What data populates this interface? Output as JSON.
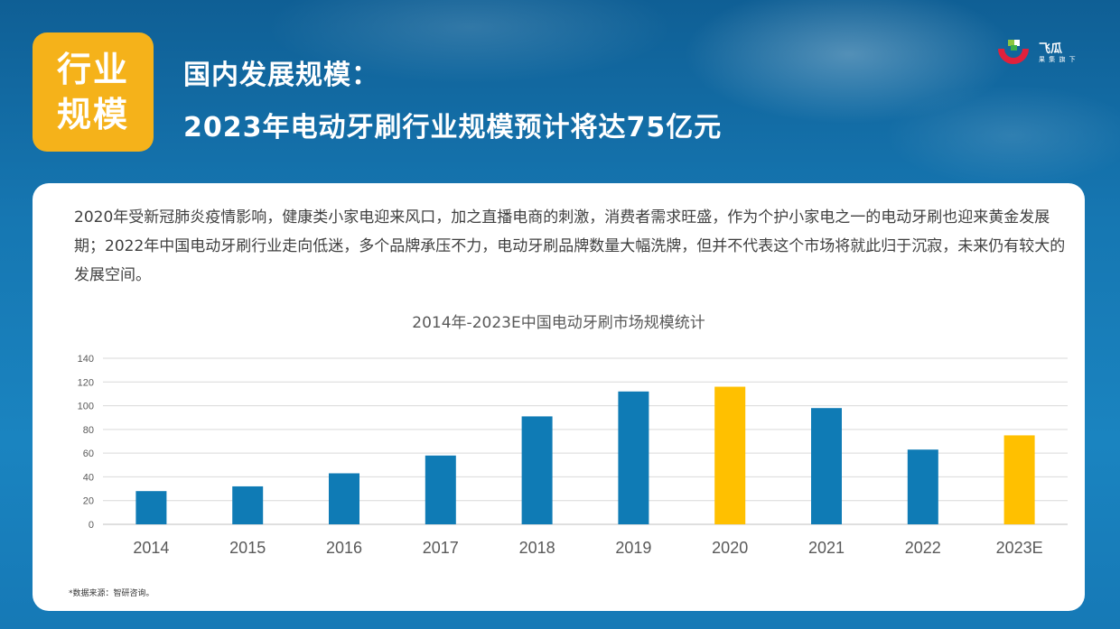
{
  "header": {
    "tag_line1": "行业",
    "tag_line2": "规模",
    "heading_line1": "国内发展规模：",
    "heading_line2": "2023年电动牙刷行业规模预计将达75亿元"
  },
  "logo": {
    "name": "飞瓜",
    "subtitle": "果 集 旗 下"
  },
  "intro_text": "2020年受新冠肺炎疫情影响，健康类小家电迎来风口，加之直播电商的刺激，消费者需求旺盛，作为个护小家电之一的电动牙刷也迎来黄金发展期；2022年中国电动牙刷行业走向低迷，多个品牌承压不力，电动牙刷品牌数量大幅洗牌，但并不代表这个市场将就此归于沉寂，未来仍有较大的发展空间。",
  "source_note": "*数据来源：智研咨询。",
  "chart_data": {
    "type": "bar",
    "title": "2014年-2023E中国电动牙刷市场规模统计",
    "xlabel": "",
    "ylabel": "",
    "categories": [
      "2014",
      "2015",
      "2016",
      "2017",
      "2018",
      "2019",
      "2020",
      "2021",
      "2022",
      "2023E"
    ],
    "values": [
      28,
      32,
      43,
      58,
      91,
      112,
      116,
      98,
      63,
      75
    ],
    "highlight_color": "#ffc000",
    "base_color": "#0f7bb5",
    "highlighted": [
      "2020",
      "2023E"
    ],
    "yticks": [
      0,
      20,
      40,
      60,
      80,
      100,
      120,
      140
    ],
    "ylim": [
      0,
      140
    ],
    "grid": true
  },
  "colors": {
    "background": "#1677b2",
    "tag": "#f5b21a",
    "card": "#ffffff"
  }
}
